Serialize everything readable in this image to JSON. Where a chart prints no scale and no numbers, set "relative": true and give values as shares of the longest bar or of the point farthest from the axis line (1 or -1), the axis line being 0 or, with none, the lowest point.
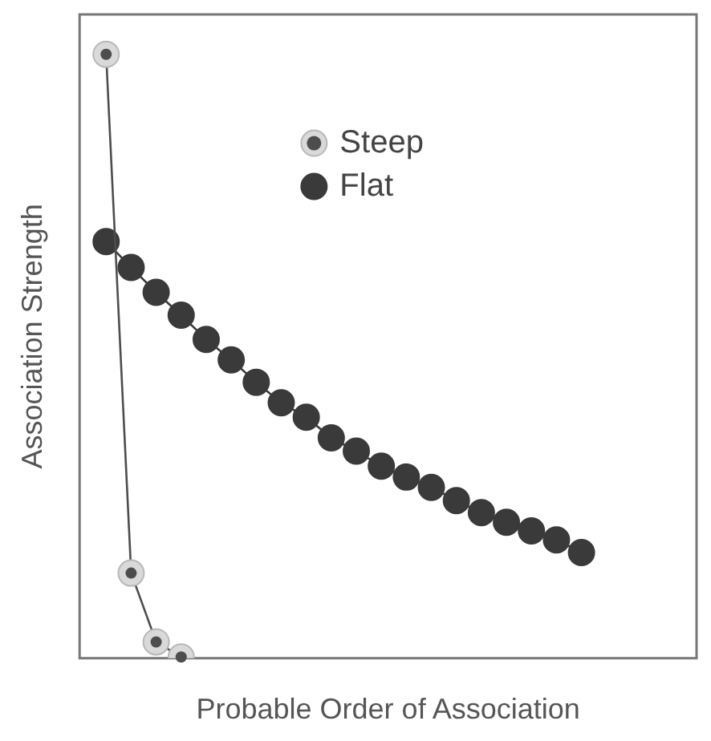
{
  "chart_data": {
    "type": "line",
    "relative": true,
    "xlabel": "Probable Order of Association",
    "ylabel": "Association Strength",
    "legend": "top",
    "marker": "circle",
    "grid": false,
    "categories": [
      null,
      null,
      null,
      null,
      null,
      null,
      null,
      null,
      null,
      null,
      null,
      null,
      null,
      null,
      null,
      null,
      null,
      null,
      null,
      null
    ],
    "series": [
      {
        "name": "Steep",
        "color": "#4d4d4d",
        "values": [
          1,
          0.141,
          0.027,
          0.002,
          null,
          null,
          null,
          null,
          null,
          null,
          null,
          null,
          null,
          null,
          null,
          null,
          null,
          null,
          null,
          null
        ]
      },
      {
        "name": "Flat",
        "color": "#3a3a3a",
        "values": [
          0.69,
          0.647,
          0.606,
          0.568,
          0.528,
          0.494,
          0.457,
          0.423,
          0.399,
          0.365,
          0.343,
          0.318,
          0.3,
          0.283,
          0.261,
          0.241,
          0.225,
          0.211,
          0.196,
          0.175
        ]
      }
    ]
  }
}
